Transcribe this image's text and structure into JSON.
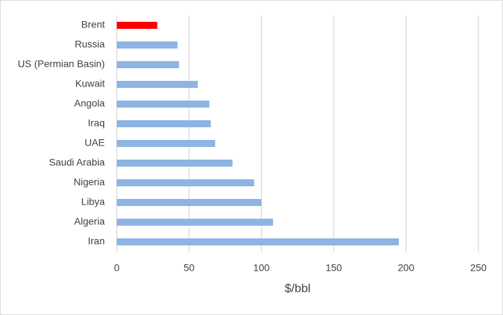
{
  "chart_data": {
    "type": "bar",
    "orientation": "horizontal",
    "categories": [
      "Brent",
      "Russia",
      "US (Permian Basin)",
      "Kuwait",
      "Angola",
      "Iraq",
      "UAE",
      "Saudi Arabia",
      "Nigeria",
      "Libya",
      "Algeria",
      "Iran"
    ],
    "values": [
      28,
      42,
      43,
      56,
      64,
      65,
      68,
      80,
      95,
      100,
      108,
      195
    ],
    "colors": [
      "#ff0000",
      "#8db4e2",
      "#8db4e2",
      "#8db4e2",
      "#8db4e2",
      "#8db4e2",
      "#8db4e2",
      "#8db4e2",
      "#8db4e2",
      "#8db4e2",
      "#8db4e2",
      "#8db4e2"
    ],
    "xlim": [
      0,
      250
    ],
    "xticks": [
      0,
      50,
      100,
      150,
      200,
      250
    ],
    "x_label": "$/bbl",
    "grid": true
  }
}
